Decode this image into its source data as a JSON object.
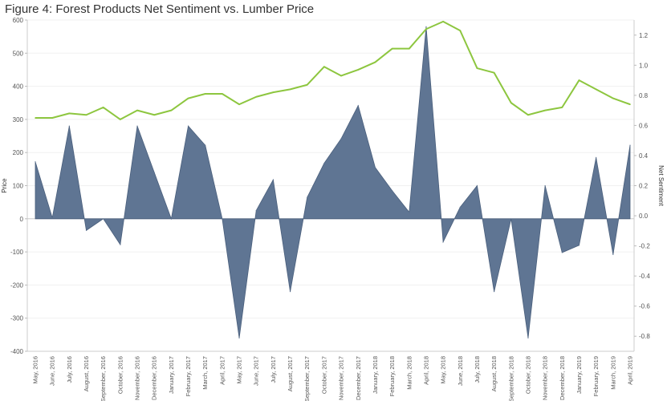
{
  "chart_data": {
    "type": "area",
    "title": "Figure 4: Forest Products Net Sentiment vs. Lumber Price",
    "ylabel_left": "Price",
    "ylabel_right": "Net Sentiment",
    "ylim_left": [
      -400,
      600
    ],
    "ylim_right": [
      -0.9,
      1.3
    ],
    "yticks_left": [
      "600",
      "500",
      "400",
      "300",
      "200",
      "100",
      "0",
      "-100",
      "-200",
      "-300",
      "-400"
    ],
    "yticks_right": [
      "1.2",
      "1.0",
      "0.8",
      "0.6",
      "0.4",
      "0.2",
      "0.0",
      "-0.2",
      "-0.4",
      "-0.6",
      "-0.8"
    ],
    "grid": true,
    "legend": "none",
    "categories": [
      "May, 2016",
      "June, 2016",
      "July, 2016",
      "August, 2016",
      "September, 2016",
      "October, 2016",
      "November, 2016",
      "December, 2016",
      "January, 2017",
      "February, 2017",
      "March, 2017",
      "April, 2017",
      "May, 2017",
      "June, 2017",
      "July, 2017",
      "August, 2017",
      "September, 2017",
      "October, 2017",
      "November, 2017",
      "December, 2017",
      "January, 2018",
      "February, 2018",
      "March, 2018",
      "April, 2018",
      "May, 2018",
      "June, 2018",
      "July, 2018",
      "August, 2018",
      "September, 2018",
      "October, 2018",
      "November, 2018",
      "December, 2018",
      "January, 2019",
      "February, 2019",
      "March, 2019",
      "April, 2019"
    ],
    "series": [
      {
        "type": "area",
        "axis": "left",
        "color": "#5f7593",
        "values": [
          172,
          3,
          280,
          -35,
          0,
          -78,
          280,
          140,
          0,
          280,
          222,
          0,
          -360,
          25,
          118,
          -220,
          65,
          168,
          242,
          342,
          155,
          85,
          20,
          580,
          -70,
          35,
          100,
          -220,
          0,
          -360,
          100,
          -102,
          -80,
          185,
          -108,
          222
        ]
      },
      {
        "type": "line",
        "axis": "right",
        "color": "#8dc63f",
        "values": [
          0.65,
          0.65,
          0.68,
          0.67,
          0.72,
          0.64,
          0.7,
          0.67,
          0.7,
          0.78,
          0.81,
          0.81,
          0.74,
          0.79,
          0.82,
          0.84,
          0.87,
          0.99,
          0.93,
          0.97,
          1.02,
          1.11,
          1.11,
          1.24,
          1.29,
          1.23,
          0.98,
          0.95,
          0.75,
          0.67,
          0.7,
          0.72,
          0.9,
          0.84,
          0.78,
          0.74
        ]
      }
    ]
  }
}
